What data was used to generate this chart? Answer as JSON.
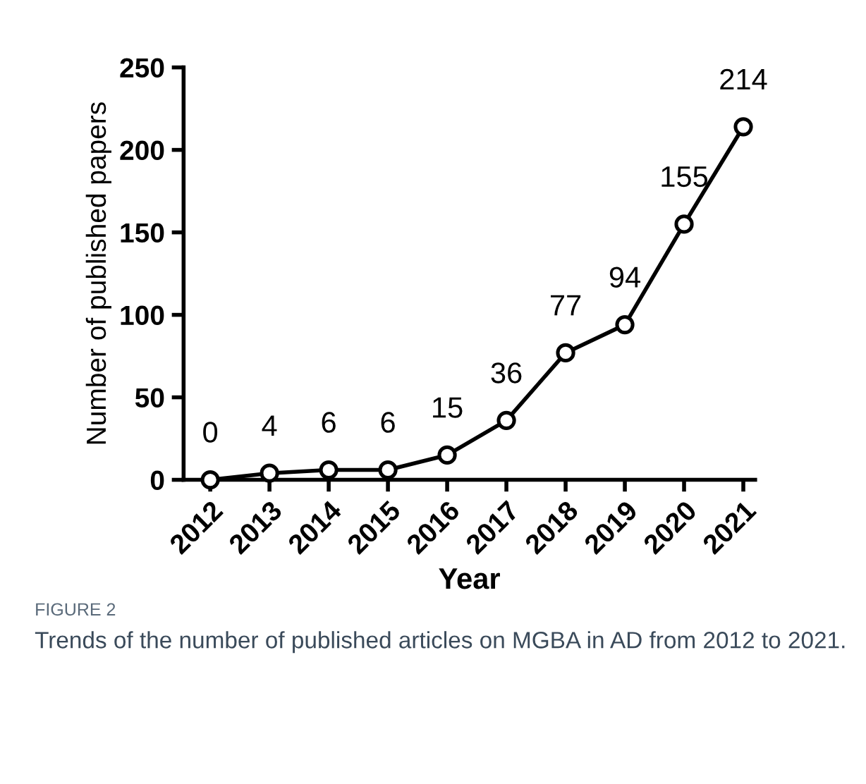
{
  "chart_data": {
    "type": "line",
    "xlabel": "Year",
    "ylabel": "Number of published papers",
    "categories": [
      "2012",
      "2013",
      "2014",
      "2015",
      "2016",
      "2017",
      "2018",
      "2019",
      "2020",
      "2021"
    ],
    "series": [
      {
        "color": "#000000",
        "values": [
          0,
          4,
          6,
          6,
          15,
          36,
          77,
          94,
          155,
          214
        ]
      }
    ],
    "ylim": [
      0,
      250
    ],
    "yticks": [
      0,
      50,
      100,
      150,
      200,
      250
    ],
    "data_labels": true,
    "grid": false,
    "marker": "circle",
    "line_style": "solid",
    "annotations": [
      "FIGURE 2",
      "Trends of the number of published articles on MGBA in AD from 2012 to 2021."
    ]
  }
}
